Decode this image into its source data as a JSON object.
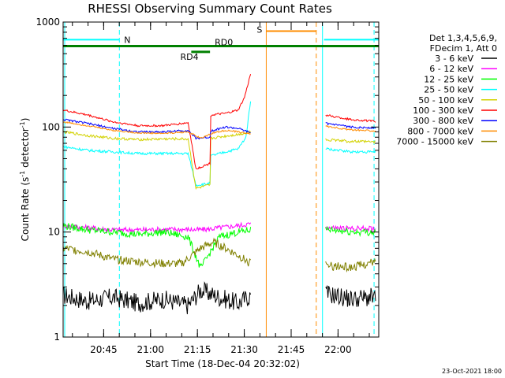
{
  "chart_data": {
    "type": "line",
    "title": "RHESSI Observing Summary Count Rates",
    "ylabel_base": "Count Rate (s",
    "ylabel_sup1": "-1",
    "ylabel_mid": " detector",
    "ylabel_sup2": "-1",
    "ylabel_end": ")",
    "xlabel": "Start Time (18-Dec-04 20:32:02)",
    "y_scale": "log",
    "ylim": [
      1,
      1000
    ],
    "y_ticks": [
      {
        "value": 1,
        "label": "1"
      },
      {
        "value": 10,
        "label": "10"
      },
      {
        "value": 100,
        "label": "100"
      },
      {
        "value": 1000,
        "label": "1000"
      }
    ],
    "x_unit": "minutes after 20:32:02",
    "xlim": [
      0,
      101
    ],
    "x_ticks": [
      {
        "value": 12.97,
        "label": "20:45"
      },
      {
        "value": 27.97,
        "label": "21:00"
      },
      {
        "value": 42.97,
        "label": "21:15"
      },
      {
        "value": 57.97,
        "label": "21:30"
      },
      {
        "value": 72.97,
        "label": "21:45"
      },
      {
        "value": 87.97,
        "label": "22:00"
      }
    ],
    "legend": {
      "header": [
        "Det 1,3,4,5,6,9,",
        "FDecim 1, Att 0"
      ],
      "position": "right"
    },
    "series": [
      {
        "name": "3 - 6 keV",
        "color": "#000000",
        "points": [
          [
            0,
            2.5
          ],
          [
            8,
            2.2
          ],
          [
            16,
            2.4
          ],
          [
            24,
            2.1
          ],
          [
            32,
            2.3
          ],
          [
            40,
            2.0
          ],
          [
            44,
            2.8
          ],
          [
            50,
            2.4
          ],
          [
            56,
            2.1
          ],
          [
            60,
            2.5
          ]
        ],
        "points2": [
          [
            84,
            2.6
          ],
          [
            92,
            2.3
          ],
          [
            100,
            2.4
          ]
        ]
      },
      {
        "name": "6 - 12 keV",
        "color": "#ff00ff",
        "points": [
          [
            0,
            11.5
          ],
          [
            8,
            11
          ],
          [
            16,
            10.5
          ],
          [
            24,
            10.5
          ],
          [
            32,
            10.6
          ],
          [
            40,
            10.6
          ],
          [
            42,
            10.5
          ],
          [
            46,
            10.6
          ],
          [
            50,
            11
          ],
          [
            56,
            11.5
          ],
          [
            60,
            12
          ]
        ],
        "points2": [
          [
            84,
            11
          ],
          [
            92,
            10.8
          ],
          [
            100,
            10.8
          ]
        ]
      },
      {
        "name": "12 - 25 keV",
        "color": "#00ff00",
        "points": [
          [
            0,
            11.5
          ],
          [
            8,
            10.5
          ],
          [
            16,
            10
          ],
          [
            24,
            9.5
          ],
          [
            32,
            10
          ],
          [
            40,
            9
          ],
          [
            44,
            4.5
          ],
          [
            50,
            9
          ],
          [
            56,
            10
          ],
          [
            60,
            10.5
          ]
        ],
        "points2": [
          [
            84,
            10.5
          ],
          [
            92,
            10
          ],
          [
            100,
            10
          ]
        ]
      },
      {
        "name": "25 - 50 keV",
        "color": "#00ffff",
        "points": [
          [
            0,
            65
          ],
          [
            8,
            60
          ],
          [
            16,
            58
          ],
          [
            24,
            56
          ],
          [
            32,
            56
          ],
          [
            40,
            56
          ],
          [
            42.5,
            28
          ],
          [
            47,
            29
          ],
          [
            47.2,
            53
          ],
          [
            52,
            58
          ],
          [
            56,
            62
          ],
          [
            58.5,
            80
          ],
          [
            60,
            180
          ]
        ],
        "points2": [
          [
            84,
            62
          ],
          [
            92,
            58
          ],
          [
            100,
            58
          ]
        ]
      },
      {
        "name": "50 - 100 keV",
        "color": "#d2d200",
        "points": [
          [
            0,
            90
          ],
          [
            8,
            83
          ],
          [
            16,
            78
          ],
          [
            24,
            76
          ],
          [
            32,
            77
          ],
          [
            40,
            77
          ],
          [
            42.5,
            26
          ],
          [
            47,
            28
          ],
          [
            47.2,
            78
          ],
          [
            52,
            82
          ],
          [
            56,
            85
          ],
          [
            60,
            90
          ]
        ],
        "points2": [
          [
            84,
            76
          ],
          [
            92,
            73
          ],
          [
            100,
            72
          ]
        ]
      },
      {
        "name": "100 - 300 keV",
        "color": "#ff0000",
        "points": [
          [
            0,
            145
          ],
          [
            8,
            130
          ],
          [
            16,
            112
          ],
          [
            24,
            103
          ],
          [
            32,
            103
          ],
          [
            40,
            110
          ],
          [
            42.5,
            40
          ],
          [
            47,
            45
          ],
          [
            47.2,
            130
          ],
          [
            52,
            135
          ],
          [
            56,
            145
          ],
          [
            58,
            190
          ],
          [
            60,
            320
          ]
        ],
        "points2": [
          [
            84,
            130
          ],
          [
            92,
            118
          ],
          [
            100,
            113
          ]
        ]
      },
      {
        "name": "300 - 800 keV",
        "color": "#0000ff",
        "points": [
          [
            0,
            118
          ],
          [
            8,
            108
          ],
          [
            16,
            97
          ],
          [
            24,
            90
          ],
          [
            32,
            90
          ],
          [
            40,
            93
          ],
          [
            42.5,
            78
          ],
          [
            47,
            80
          ],
          [
            47.2,
            92
          ],
          [
            52,
            100
          ],
          [
            56,
            97
          ],
          [
            60,
            88
          ]
        ],
        "points2": [
          [
            84,
            108
          ],
          [
            92,
            100
          ],
          [
            100,
            98
          ]
        ]
      },
      {
        "name": "800 - 7000 keV",
        "color": "#ff8c00",
        "points": [
          [
            0,
            112
          ],
          [
            8,
            103
          ],
          [
            16,
            93
          ],
          [
            24,
            88
          ],
          [
            32,
            87
          ],
          [
            40,
            90
          ],
          [
            44,
            78
          ],
          [
            48,
            88
          ],
          [
            52,
            93
          ],
          [
            56,
            90
          ],
          [
            60,
            86
          ]
        ],
        "points2": [
          [
            84,
            102
          ],
          [
            92,
            94
          ],
          [
            100,
            92
          ]
        ]
      },
      {
        "name": "7000 - 15000 keV",
        "color": "#808000",
        "points": [
          [
            0,
            7
          ],
          [
            8,
            6.5
          ],
          [
            16,
            5.5
          ],
          [
            24,
            5.2
          ],
          [
            32,
            5
          ],
          [
            38,
            5
          ],
          [
            44,
            7
          ],
          [
            48,
            8
          ],
          [
            52,
            7
          ],
          [
            56,
            6
          ],
          [
            60,
            5
          ]
        ],
        "points2": [
          [
            84,
            4.8
          ],
          [
            92,
            4.6
          ],
          [
            100,
            5.2
          ]
        ]
      }
    ],
    "annotations": [
      {
        "label": "N",
        "color": "#00ffff",
        "level": 680,
        "x_start": 0,
        "x_end": 18,
        "boundary": 18
      },
      {
        "label": "S",
        "color": "#ff8c00",
        "level": 820,
        "x_start": 65,
        "x_end": 81,
        "boundary": 81
      },
      {
        "label": "RD0",
        "color": "#008000",
        "level": 590,
        "x_start": 0,
        "x_end": 101
      },
      {
        "label": "RD4",
        "color": "#008000",
        "level": 520,
        "x_start": 41,
        "x_end": 47
      }
    ],
    "footer": "23-Oct-2021 18:00"
  }
}
